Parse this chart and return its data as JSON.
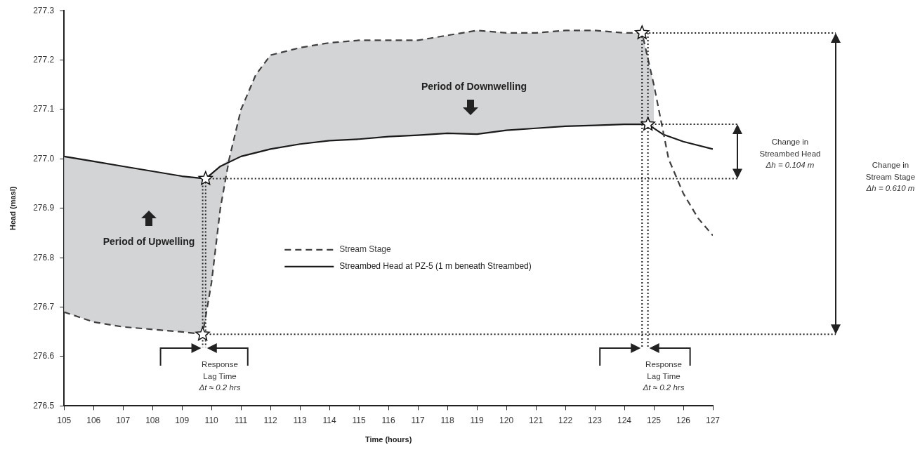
{
  "chart_data": {
    "type": "line",
    "xlabel": "Time (hours)",
    "ylabel": "Head (masl)",
    "xlim": [
      105,
      127
    ],
    "xticks": [
      105,
      106,
      107,
      108,
      109,
      110,
      111,
      112,
      113,
      114,
      115,
      116,
      117,
      118,
      119,
      120,
      121,
      122,
      123,
      124,
      125,
      126,
      127
    ],
    "ylim": [
      276.5,
      277.3
    ],
    "yticks": [
      276.5,
      276.6,
      276.7,
      276.8,
      276.9,
      {
        "value": 277,
        "label": "277.0"
      },
      277.1,
      277.2,
      277.3
    ],
    "legend": "center",
    "grid": false,
    "series": [
      {
        "name": "Stream Stage",
        "line_style": "dashed",
        "color": "#404040",
        "x": [
          105,
          106,
          107,
          108,
          109,
          109.7,
          110,
          110.3,
          110.6,
          111,
          111.5,
          112,
          113,
          114,
          115,
          116,
          117,
          118,
          119,
          120,
          121,
          122,
          123,
          124,
          124.6,
          125,
          125.5,
          126,
          126.5,
          127
        ],
        "values": [
          276.69,
          276.67,
          276.66,
          276.655,
          276.65,
          276.645,
          276.75,
          276.9,
          277.0,
          277.1,
          277.17,
          277.21,
          277.225,
          277.235,
          277.24,
          277.24,
          277.24,
          277.25,
          277.26,
          277.255,
          277.255,
          277.26,
          277.26,
          277.255,
          277.255,
          277.15,
          277.0,
          276.93,
          276.88,
          276.845
        ],
        "lower": [
          276.69,
          276.67,
          276.66,
          276.655,
          276.65,
          276.645,
          276.75,
          276.9,
          276.994,
          277.005,
          277.0125,
          277.02,
          277.03,
          277.037,
          277.04,
          277.045,
          277.048,
          277.052,
          277.05,
          277.058,
          277.062,
          277.066,
          277.068,
          277.07,
          277.07,
          277.062,
          null,
          null,
          null,
          null
        ],
        "upper": [
          277.005,
          276.995,
          276.985,
          276.975,
          276.965,
          276.961,
          276.97,
          276.985,
          277.0,
          277.1,
          277.17,
          277.21,
          277.225,
          277.235,
          277.24,
          277.24,
          277.24,
          277.25,
          277.26,
          277.255,
          277.255,
          277.26,
          277.26,
          277.255,
          277.255,
          277.15,
          null,
          null,
          null,
          null
        ]
      },
      {
        "name": "Streambed Head at PZ-5 (1 m beneath Streambed)",
        "line_style": "solid",
        "color": "#1a1a1a",
        "x": [
          105,
          106,
          107,
          108,
          109,
          109.8,
          110.3,
          111,
          112,
          113,
          114,
          115,
          116,
          117,
          118,
          119,
          120,
          121,
          122,
          123,
          124,
          124.8,
          125.3,
          126,
          127
        ],
        "values": [
          277.005,
          276.995,
          276.985,
          276.975,
          276.965,
          276.96,
          276.985,
          277.005,
          277.02,
          277.03,
          277.037,
          277.04,
          277.045,
          277.048,
          277.052,
          277.05,
          277.058,
          277.062,
          277.066,
          277.068,
          277.07,
          277.07,
          277.05,
          277.035,
          277.02
        ]
      },
      {
        "type": "scatter",
        "marker": "star",
        "color": "#ffffff",
        "x": [
          109.7,
          109.8,
          124.6,
          124.8
        ],
        "values": [
          276.645,
          276.96,
          277.255,
          277.07
        ]
      }
    ],
    "ref_lines": [
      {
        "axis": "y",
        "value": 277.07,
        "line_style": "dotted"
      },
      {
        "axis": "y",
        "value": 276.96,
        "line_style": "dotted"
      },
      {
        "axis": "y",
        "value": 277.255,
        "line_style": "dotted"
      },
      {
        "axis": "y",
        "value": 276.645,
        "line_style": "dotted"
      },
      {
        "axis": "x",
        "value": 109.7,
        "line_style": "dotted"
      },
      {
        "axis": "x",
        "value": 109.8,
        "line_style": "dotted"
      },
      {
        "axis": "x",
        "value": 124.6,
        "line_style": "dotted"
      },
      {
        "axis": "x",
        "value": 124.8,
        "line_style": "dotted"
      }
    ],
    "annotations": [
      "Period of Downwelling",
      "Period of Upwelling",
      "Response\nLag Time\nΔt ≈ 0.2 hrs",
      "Response\nLag Time\nΔt ≈ 0.2 hrs",
      "Change in\nStreambed Head\nΔh = 0.104 m",
      "Change in\nStream Stage\nΔh = 0.610 m"
    ]
  }
}
